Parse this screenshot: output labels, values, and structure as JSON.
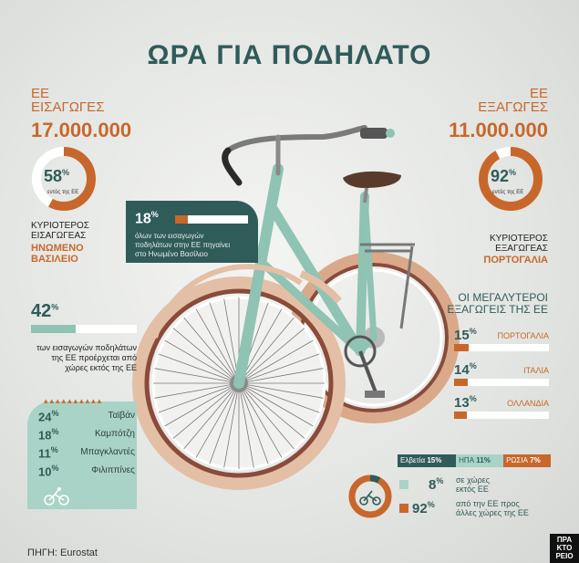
{
  "title": "ΩΡΑ ΓΙΑ ΠΟΔΗΛΑΤΟ",
  "imports": {
    "label_line1": "ΕΕ",
    "label_line2": "ΕΙΣΑΓΩΓΕΣ",
    "total": "17.000.000",
    "pct_value": "58",
    "pct_sign": "%",
    "pct_caption": "εντός της ΕΕ",
    "pct_fraction": 0.58,
    "top_label_line1": "ΚΥΡΙΟΤΕΡΟΣ",
    "top_label_line2": "ΕΙΣΑΓΩΓΕΑΣ",
    "top_country_line1": "ΗΝΩΜΕΝΟ",
    "top_country_line2": "ΒΑΣΙΛΕΙΟ"
  },
  "exports": {
    "label_line1": "ΕΕ",
    "label_line2": "ΕΞΑΓΩΓΕΣ",
    "total": "11.000.000",
    "pct_value": "92",
    "pct_sign": "%",
    "pct_caption": "εντός της ΕΕ",
    "pct_fraction": 0.92,
    "top_label_line1": "ΚΥΡΙΟΤΕΡΟΣ",
    "top_label_line2": "ΕΞΑΓΩΓΕΑΣ",
    "top_country": "ΠΟΡΤΟΓΑΛΙΑ"
  },
  "uk_box": {
    "pct_value": "18",
    "pct_sign": "%",
    "fraction": 0.18,
    "text_line1": "όλων των εισαγωγών",
    "text_line2": "ποδηλάτων στην ΕΕ πηγαίνει",
    "text_line3": "στο Ηνωμένο Βασίλειο"
  },
  "outside_imports": {
    "pct_value": "42",
    "pct_sign": "%",
    "fraction": 0.42,
    "text_line1": "των εισαγωγών ποδηλάτων",
    "text_line2": "της ΕΕ προέρχεται από",
    "text_line3": "χώρες εκτός της ΕΕ"
  },
  "source_countries": [
    {
      "value": "24",
      "sign": "%",
      "name": "Ταϊβάν"
    },
    {
      "value": "18",
      "sign": "%",
      "name": "Καμπότζη"
    },
    {
      "value": "11",
      "sign": "%",
      "name": "Μπαγκλαντές"
    },
    {
      "value": "10",
      "sign": "%",
      "name": "Φιλιππίνες"
    }
  ],
  "largest_exporters": {
    "title_line1": "ΟΙ ΜΕΓΑΛΥΤΕΡΟΙ",
    "title_line2": "ΕΞΑΓΩΓΕΙΣ ΤΗΣ ΕΕ",
    "items": [
      {
        "value": "15",
        "sign": "%",
        "name": "ΠΟΡΤΟΓΑΛΙΑ",
        "fraction": 0.15
      },
      {
        "value": "14",
        "sign": "%",
        "name": "ΙΤΑΛΙΑ",
        "fraction": 0.14
      },
      {
        "value": "13",
        "sign": "%",
        "name": "ΟΛΛΑΝΔΙΑ",
        "fraction": 0.13
      }
    ]
  },
  "export_destinations": {
    "bar": [
      {
        "name": "Ελβετία",
        "value": "15%"
      },
      {
        "name": "ΗΠΑ",
        "value": "11%"
      },
      {
        "name": "ΡΩΣΙΑ",
        "value": "7%"
      }
    ],
    "outside_value": "8",
    "outside_sign": "%",
    "outside_text_line1": "σε χώρες",
    "outside_text_line2": "εκτός ΕΕ",
    "inside_value": "92",
    "inside_sign": "%",
    "inside_text_line1": "από την ΕΕ προς",
    "inside_text_line2": "άλλες χώρες της ΕΕ"
  },
  "source": "ΠΗΓΗ: Eurostat",
  "logo_line1": "ΠΡΑ",
  "logo_line2": "ΚΤΟ",
  "logo_line3": "ΡΕΙΟ",
  "colors": {
    "teal": "#2f5b59",
    "orange": "#c8672b",
    "mint": "#a8d3c6"
  }
}
